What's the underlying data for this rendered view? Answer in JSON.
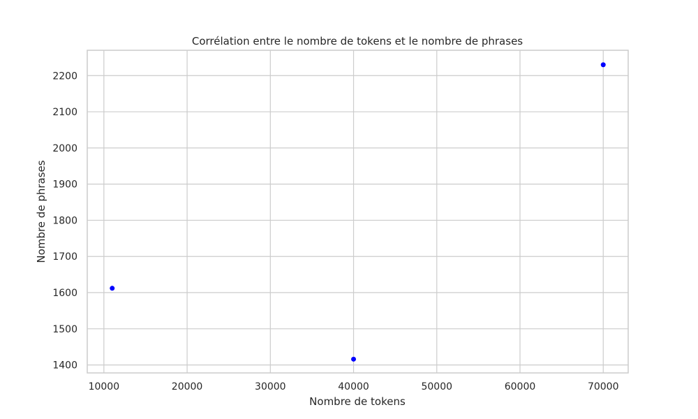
{
  "chart_data": {
    "type": "scatter",
    "title": "Corrélation entre le nombre de tokens et le nombre de phrases",
    "xlabel": "Nombre de tokens",
    "ylabel": "Nombre de phrases",
    "xlim": [
      8000,
      73000
    ],
    "ylim": [
      1378,
      2270
    ],
    "xticks": [
      10000,
      20000,
      30000,
      40000,
      50000,
      60000,
      70000
    ],
    "yticks": [
      1400,
      1500,
      1600,
      1700,
      1800,
      1900,
      2000,
      2100,
      2200
    ],
    "grid": true,
    "point_color": "#0000ff",
    "points": [
      {
        "x": 11000,
        "y": 1612
      },
      {
        "x": 40000,
        "y": 1416
      },
      {
        "x": 70000,
        "y": 2230
      }
    ]
  }
}
